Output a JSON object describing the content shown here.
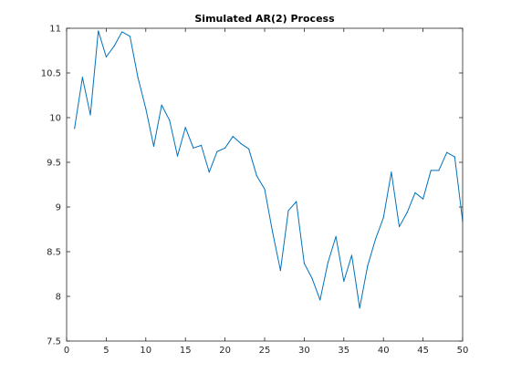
{
  "chart_data": {
    "type": "line",
    "title": "Simulated AR(2) Process",
    "xlabel": "",
    "ylabel": "",
    "xlim": [
      0,
      50
    ],
    "ylim": [
      7.5,
      11
    ],
    "grid": false,
    "x_ticks": [
      0,
      5,
      10,
      15,
      20,
      25,
      30,
      35,
      40,
      45,
      50
    ],
    "x_tick_labels": [
      "0",
      "5",
      "10",
      "15",
      "20",
      "25",
      "30",
      "35",
      "40",
      "45",
      "50"
    ],
    "y_ticks": [
      7.5,
      8,
      8.5,
      9,
      9.5,
      10,
      10.5,
      11
    ],
    "y_tick_labels": [
      "7.5",
      "8",
      "8.5",
      "9",
      "9.5",
      "10",
      "10.5",
      "11"
    ],
    "series": [
      {
        "color": "#0072bd",
        "x": [
          1,
          2,
          3,
          4,
          5,
          6,
          7,
          8,
          9,
          10,
          11,
          12,
          13,
          14,
          15,
          16,
          17,
          18,
          19,
          20,
          21,
          22,
          23,
          24,
          25,
          26,
          27,
          28,
          29,
          30,
          31,
          32,
          33,
          34,
          35,
          36,
          37,
          38,
          39,
          40,
          41,
          42,
          43,
          44,
          45,
          46,
          47,
          48,
          49,
          50
        ],
        "values": [
          9.88,
          10.45,
          10.03,
          10.97,
          10.68,
          10.8,
          10.96,
          10.91,
          10.45,
          10.1,
          9.68,
          10.14,
          9.97,
          9.57,
          9.89,
          9.66,
          9.69,
          9.39,
          9.62,
          9.66,
          9.79,
          9.71,
          9.65,
          9.35,
          9.2,
          8.72,
          8.29,
          8.96,
          9.06,
          8.37,
          8.2,
          7.96,
          8.38,
          8.67,
          8.17,
          8.46,
          7.87,
          8.34,
          8.64,
          8.88,
          9.39,
          8.78,
          8.94,
          9.16,
          9.09,
          9.41,
          9.41,
          9.61,
          9.56,
          8.84
        ]
      }
    ]
  }
}
